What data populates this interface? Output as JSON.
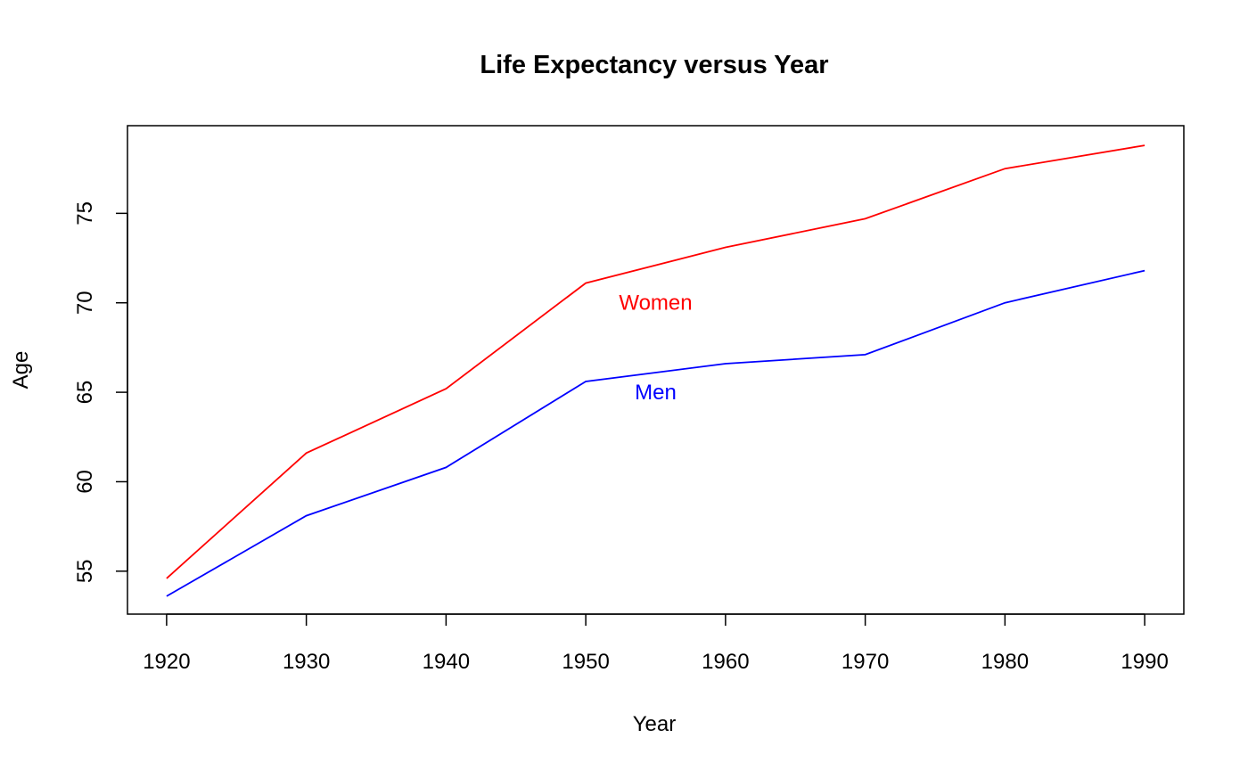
{
  "chart_data": {
    "type": "line",
    "title": "Life Expectancy versus Year",
    "xlabel": "Year",
    "ylabel": "Age",
    "x": [
      1920,
      1930,
      1940,
      1950,
      1960,
      1970,
      1980,
      1990
    ],
    "xticks": [
      1920,
      1930,
      1940,
      1950,
      1960,
      1970,
      1980,
      1990
    ],
    "yticks": [
      55,
      60,
      65,
      70,
      75
    ],
    "xlim": [
      1917.2,
      1992.8
    ],
    "ylim": [
      52.6,
      79.9
    ],
    "grid": false,
    "legend": "none",
    "series": [
      {
        "name": "Women",
        "color": "#ff0000",
        "values": [
          54.6,
          61.6,
          65.2,
          71.1,
          73.1,
          74.7,
          77.5,
          78.8
        ],
        "label_at": [
          1955,
          70
        ]
      },
      {
        "name": "Men",
        "color": "#0000ff",
        "values": [
          53.6,
          58.1,
          60.8,
          65.6,
          66.6,
          67.1,
          70.0,
          71.8
        ],
        "label_at": [
          1955,
          65
        ]
      }
    ]
  }
}
